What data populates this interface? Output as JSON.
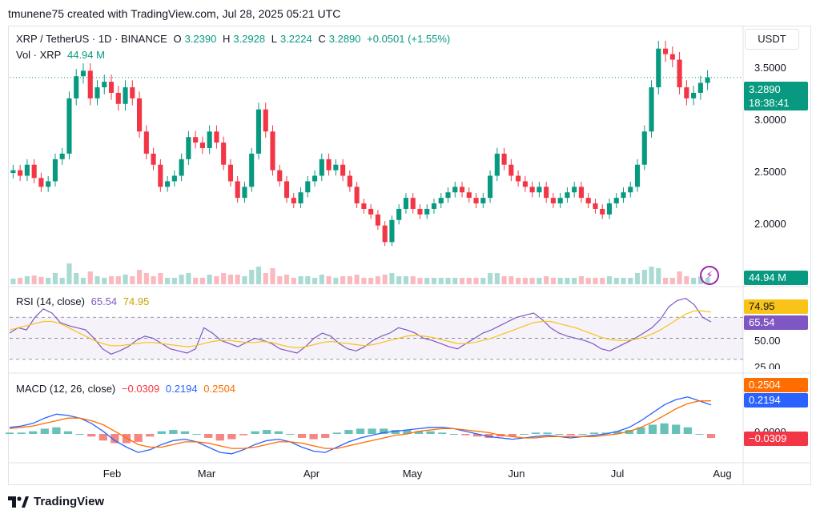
{
  "header": {
    "attribution": "tmunene75 created with TradingView.com, Jul 28, 2025 05:21 UTC"
  },
  "main_legend": {
    "symbol": "XRP / TetherUS · 1D · BINANCE",
    "open_label": "O",
    "open": "3.2390",
    "high_label": "H",
    "high": "3.2928",
    "low_label": "L",
    "low": "3.2224",
    "close_label": "C",
    "close": "3.2890",
    "change": "+0.0501 (+1.55%)"
  },
  "vol_legend": {
    "label": "Vol · XRP",
    "value": "44.94 M"
  },
  "currency": "USDT",
  "price_tag": {
    "price": "3.2890",
    "countdown": "18:38:41"
  },
  "vol_tag": "44.94 M",
  "rsi_legend": {
    "label": "RSI (14, close)",
    "rsi": "65.54",
    "ma": "74.95"
  },
  "rsi_tags": {
    "ma": "74.95",
    "rsi": "65.54"
  },
  "macd_legend": {
    "label": "MACD (12, 26, close)",
    "hist": "−0.0309",
    "macd": "0.2194",
    "signal": "0.2504"
  },
  "macd_tags": {
    "signal": "0.2504",
    "macd": "0.2194",
    "hist": "−0.0309"
  },
  "footer": {
    "brand": "TradingView"
  },
  "colors": {
    "up": "#089981",
    "down": "#f23645",
    "rsi": "#7e57c2",
    "rsi_ma": "#f9c318",
    "macd": "#2962ff",
    "signal": "#ff6d00"
  },
  "chart_data": [
    {
      "type": "candlestick",
      "title": "XRP / TetherUS · 1D · BINANCE",
      "y_ticks": [
        "3.5000",
        "3.0000",
        "2.5000",
        "2.0000"
      ],
      "x_ticks": [
        "Feb",
        "Mar",
        "Apr",
        "May",
        "Jun",
        "Jul",
        "Aug"
      ],
      "ylim": [
        1.6,
        3.7
      ],
      "close_series_approx": [
        2.45,
        2.4,
        2.5,
        2.38,
        2.3,
        2.35,
        2.55,
        2.6,
        3.1,
        3.3,
        3.35,
        3.1,
        3.2,
        3.25,
        3.15,
        3.05,
        3.2,
        3.1,
        2.8,
        2.6,
        2.5,
        2.3,
        2.35,
        2.4,
        2.55,
        2.75,
        2.7,
        2.65,
        2.8,
        2.7,
        2.5,
        2.35,
        2.2,
        2.3,
        2.6,
        3.0,
        2.8,
        2.45,
        2.35,
        2.2,
        2.15,
        2.25,
        2.35,
        2.4,
        2.55,
        2.45,
        2.5,
        2.4,
        2.3,
        2.15,
        2.1,
        2.05,
        1.95,
        1.8,
        2.0,
        2.1,
        2.2,
        2.1,
        2.05,
        2.1,
        2.15,
        2.2,
        2.25,
        2.3,
        2.25,
        2.2,
        2.15,
        2.2,
        2.4,
        2.6,
        2.5,
        2.4,
        2.35,
        2.3,
        2.25,
        2.3,
        2.2,
        2.15,
        2.2,
        2.25,
        2.3,
        2.2,
        2.15,
        2.1,
        2.05,
        2.15,
        2.2,
        2.25,
        2.3,
        2.5,
        2.8,
        3.2,
        3.55,
        3.5,
        3.45,
        3.2,
        3.1,
        3.15,
        3.24,
        3.289
      ],
      "last_price": 3.289
    },
    {
      "type": "bar",
      "title": "Vol · XRP",
      "last_value": "44.94 M"
    },
    {
      "type": "line",
      "title": "RSI (14, close)",
      "y_ticks": [
        "74.95",
        "65.54",
        "50.00",
        "25.00"
      ],
      "ylim": [
        20,
        90
      ],
      "series": [
        {
          "name": "RSI",
          "values": [
            55,
            60,
            58,
            70,
            78,
            74,
            65,
            62,
            60,
            58,
            50,
            40,
            35,
            38,
            42,
            48,
            52,
            50,
            45,
            40,
            38,
            36,
            40,
            60,
            55,
            48,
            45,
            42,
            46,
            50,
            48,
            45,
            40,
            38,
            36,
            42,
            50,
            55,
            52,
            45,
            40,
            38,
            42,
            48,
            52,
            55,
            60,
            58,
            55,
            50,
            48,
            45,
            42,
            40,
            45,
            50,
            55,
            58,
            62,
            66,
            70,
            72,
            74,
            68,
            60,
            55,
            52,
            50,
            48,
            45,
            40,
            38,
            42,
            46,
            50,
            55,
            60,
            68,
            80,
            86,
            88,
            82,
            70,
            65.54
          ]
        },
        {
          "name": "RSI MA",
          "values": [
            58,
            60,
            62,
            64,
            66,
            66,
            64,
            60,
            56,
            52,
            48,
            45,
            43,
            43,
            44,
            45,
            46,
            46,
            45,
            44,
            43,
            42,
            43,
            45,
            47,
            48,
            48,
            47,
            46,
            46,
            47,
            46,
            44,
            42,
            41,
            42,
            44,
            46,
            47,
            46,
            45,
            44,
            43,
            44,
            46,
            48,
            50,
            52,
            53,
            52,
            51,
            49,
            47,
            45,
            45,
            46,
            48,
            50,
            53,
            56,
            59,
            62,
            65,
            66,
            66,
            64,
            62,
            60,
            57,
            54,
            51,
            49,
            48,
            48,
            49,
            51,
            54,
            58,
            63,
            68,
            73,
            76,
            76,
            74.95
          ]
        }
      ]
    },
    {
      "type": "line",
      "title": "MACD (12, 26, close)",
      "y_ticks": [
        "0.2504",
        "0.2194",
        "0.0000",
        "−0.0309"
      ],
      "ylim": [
        -0.2,
        0.4
      ],
      "series": [
        {
          "name": "MACD",
          "values": [
            0.05,
            0.06,
            0.08,
            0.12,
            0.15,
            0.14,
            0.12,
            0.08,
            0.02,
            -0.05,
            -0.1,
            -0.14,
            -0.12,
            -0.08,
            -0.05,
            -0.04,
            -0.06,
            -0.1,
            -0.14,
            -0.15,
            -0.12,
            -0.08,
            -0.05,
            -0.04,
            -0.06,
            -0.1,
            -0.13,
            -0.14,
            -0.1,
            -0.06,
            -0.03,
            -0.01,
            0.01,
            0.02,
            0.03,
            0.04,
            0.05,
            0.05,
            0.04,
            0.02,
            0.0,
            -0.02,
            -0.03,
            -0.04,
            -0.03,
            -0.02,
            -0.01,
            -0.02,
            -0.03,
            -0.02,
            -0.01,
            0.0,
            0.02,
            0.05,
            0.1,
            0.16,
            0.22,
            0.26,
            0.28,
            0.25,
            0.2194
          ]
        },
        {
          "name": "Signal",
          "values": [
            0.04,
            0.05,
            0.06,
            0.08,
            0.1,
            0.12,
            0.12,
            0.1,
            0.07,
            0.02,
            -0.03,
            -0.08,
            -0.1,
            -0.1,
            -0.08,
            -0.06,
            -0.06,
            -0.07,
            -0.09,
            -0.11,
            -0.11,
            -0.1,
            -0.08,
            -0.06,
            -0.06,
            -0.07,
            -0.09,
            -0.11,
            -0.11,
            -0.09,
            -0.07,
            -0.05,
            -0.03,
            -0.01,
            0.0,
            0.02,
            0.03,
            0.04,
            0.04,
            0.03,
            0.02,
            0.01,
            -0.01,
            -0.02,
            -0.03,
            -0.03,
            -0.02,
            -0.02,
            -0.02,
            -0.02,
            -0.02,
            -0.01,
            0.0,
            0.02,
            0.05,
            0.09,
            0.14,
            0.19,
            0.23,
            0.25,
            0.2504
          ]
        }
      ]
    }
  ]
}
